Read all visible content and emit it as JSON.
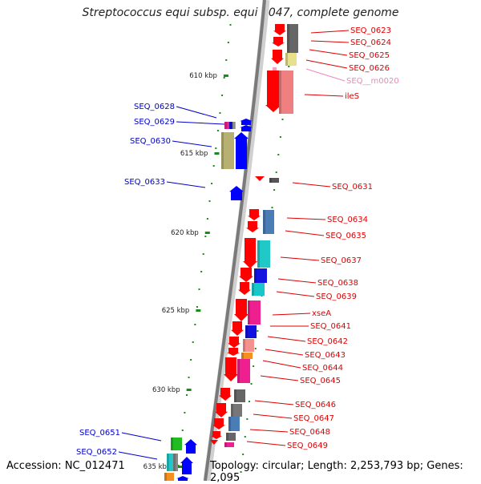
{
  "title": "Streptococcus equi subsp. equi 4047, complete genome",
  "footer": {
    "accession": "Accession: NC_012471",
    "summary": "Topology: circular; Length: 2,253,793 bp; Genes: 2,095"
  },
  "colors": {
    "backbone": "#8c8c8c",
    "backbone_light": "#d0d0d0",
    "tick": "#1a8c1a",
    "forward_label": "#0000cc",
    "reverse_label": "#dd0000",
    "rna_label": "#ee88bb",
    "arrow_forward": "#0000ff",
    "arrow_reverse": "#ff0000"
  },
  "kbp_ticks": [
    {
      "label": "610 kbp"
    },
    {
      "label": "615 kbp"
    },
    {
      "label": "620 kbp"
    },
    {
      "label": "625 kbp"
    },
    {
      "label": "630 kbp"
    },
    {
      "label": "635 kbp"
    }
  ],
  "left_labels": [
    {
      "text": "SEQ_0628"
    },
    {
      "text": "SEQ_0629"
    },
    {
      "text": "SEQ_0630"
    },
    {
      "text": "SEQ_0633"
    },
    {
      "text": "SEQ_0651"
    },
    {
      "text": "SEQ_0652"
    }
  ],
  "right_labels": [
    {
      "text": "SEQ_0623",
      "kind": "gene"
    },
    {
      "text": "SEQ_0624",
      "kind": "gene"
    },
    {
      "text": "SEQ_0625",
      "kind": "gene"
    },
    {
      "text": "SEQ_0626",
      "kind": "gene"
    },
    {
      "text": "SEQ__m0020",
      "kind": "rna"
    },
    {
      "text": "ileS",
      "kind": "gene"
    },
    {
      "text": "SEQ_0631",
      "kind": "gene"
    },
    {
      "text": "SEQ_0634",
      "kind": "gene"
    },
    {
      "text": "SEQ_0635",
      "kind": "gene"
    },
    {
      "text": "SEQ_0637",
      "kind": "gene"
    },
    {
      "text": "SEQ_0638",
      "kind": "gene"
    },
    {
      "text": "SEQ_0639",
      "kind": "gene"
    },
    {
      "text": "xseA",
      "kind": "gene"
    },
    {
      "text": "SEQ_0641",
      "kind": "gene"
    },
    {
      "text": "SEQ_0642",
      "kind": "gene"
    },
    {
      "text": "SEQ_0643",
      "kind": "gene"
    },
    {
      "text": "SEQ_0644",
      "kind": "gene"
    },
    {
      "text": "SEQ_0645",
      "kind": "gene"
    },
    {
      "text": "SEQ_0646",
      "kind": "gene"
    },
    {
      "text": "SEQ_0647",
      "kind": "gene"
    },
    {
      "text": "SEQ_0648",
      "kind": "gene"
    },
    {
      "text": "SEQ_0649",
      "kind": "gene"
    }
  ]
}
